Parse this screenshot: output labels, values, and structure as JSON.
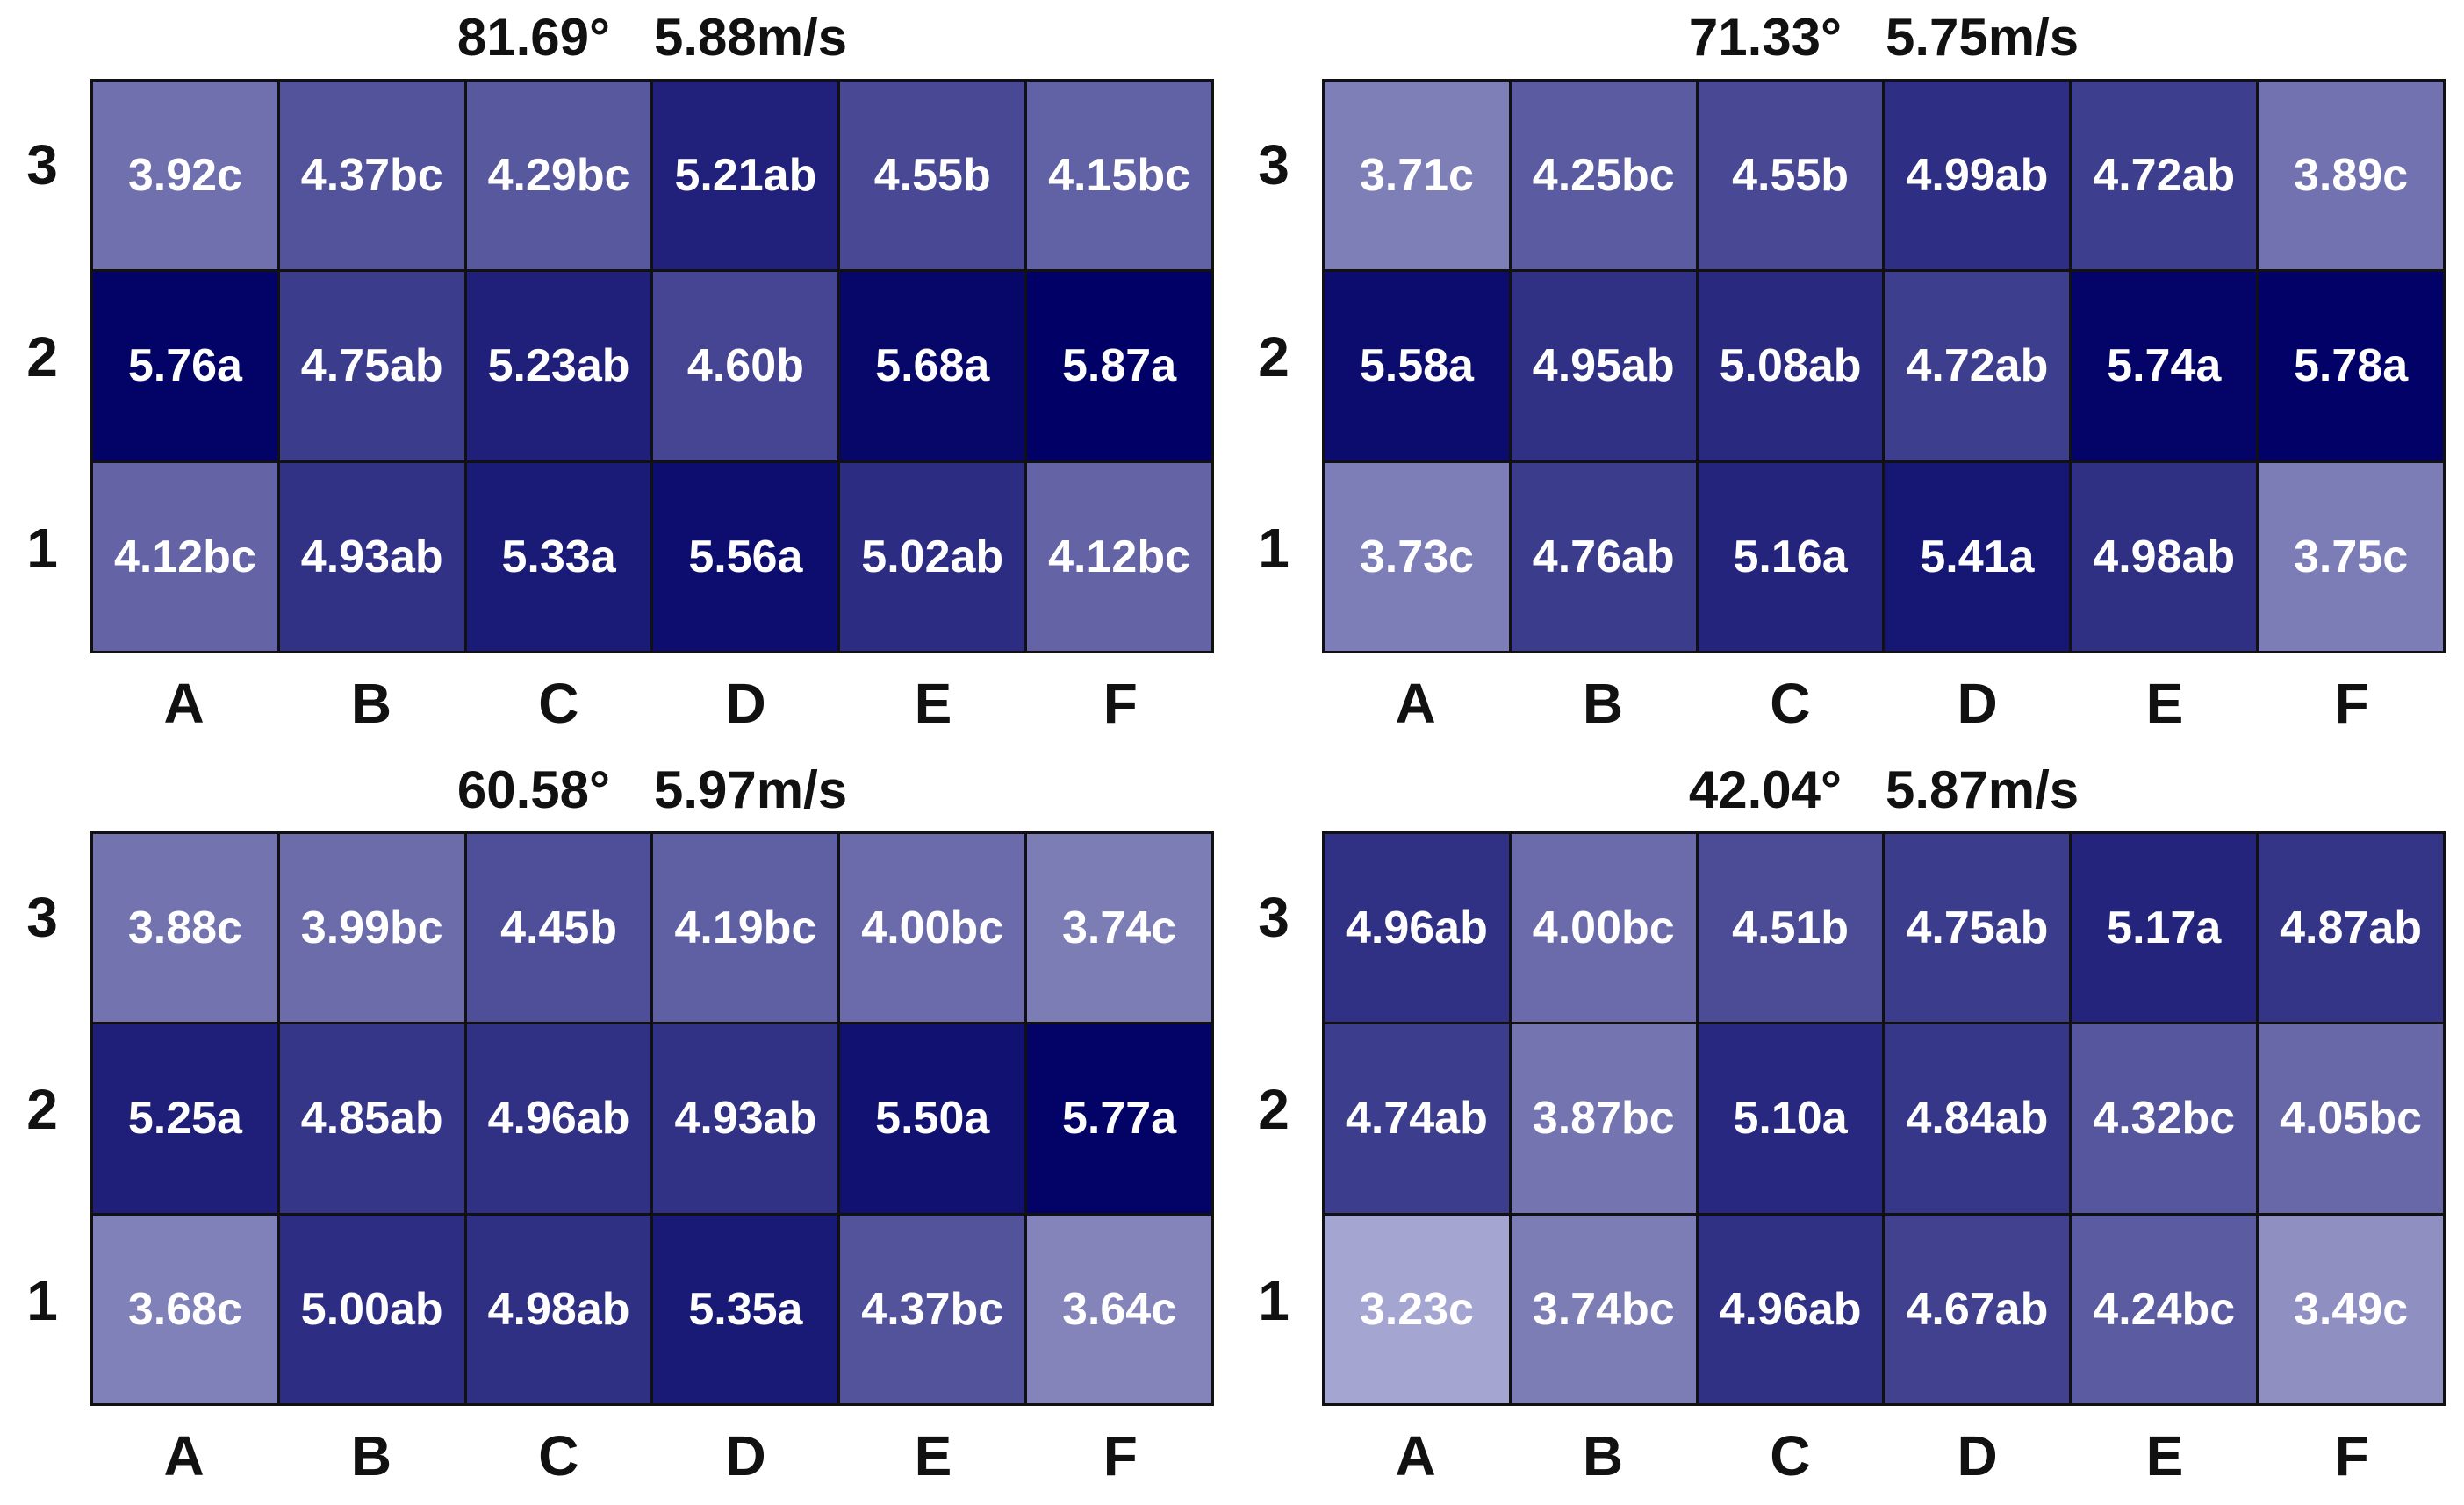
{
  "chart_data": [
    {
      "type": "heatmap",
      "title": "81.69°   5.88m/s",
      "x_categories": [
        "A",
        "B",
        "C",
        "D",
        "E",
        "F"
      ],
      "y_categories": [
        "3",
        "2",
        "1"
      ],
      "values": [
        [
          3.92,
          4.37,
          4.29,
          5.21,
          4.55,
          4.15
        ],
        [
          5.76,
          4.75,
          5.23,
          4.6,
          5.68,
          5.87
        ],
        [
          4.12,
          4.93,
          5.33,
          5.56,
          5.02,
          4.12
        ]
      ],
      "labels": [
        [
          "3.92c",
          "4.37bc",
          "4.29bc",
          "5.21ab",
          "4.55b",
          "4.15bc"
        ],
        [
          "5.76a",
          "4.75ab",
          "5.23ab",
          "4.60b",
          "5.68a",
          "5.87a"
        ],
        [
          "4.12bc",
          "4.93ab",
          "5.33a",
          "5.56a",
          "5.02ab",
          "4.12bc"
        ]
      ]
    },
    {
      "type": "heatmap",
      "title": "71.33°   5.75m/s",
      "x_categories": [
        "A",
        "B",
        "C",
        "D",
        "E",
        "F"
      ],
      "y_categories": [
        "3",
        "2",
        "1"
      ],
      "values": [
        [
          3.71,
          4.25,
          4.55,
          4.99,
          4.72,
          3.89
        ],
        [
          5.58,
          4.95,
          5.08,
          4.72,
          5.74,
          5.78
        ],
        [
          3.73,
          4.76,
          5.16,
          5.41,
          4.98,
          3.75
        ]
      ],
      "labels": [
        [
          "3.71c",
          "4.25bc",
          "4.55b",
          "4.99ab",
          "4.72ab",
          "3.89c"
        ],
        [
          "5.58a",
          "4.95ab",
          "5.08ab",
          "4.72ab",
          "5.74a",
          "5.78a"
        ],
        [
          "3.73c",
          "4.76ab",
          "5.16a",
          "5.41a",
          "4.98ab",
          "3.75c"
        ]
      ]
    },
    {
      "type": "heatmap",
      "title": "60.58°   5.97m/s",
      "x_categories": [
        "A",
        "B",
        "C",
        "D",
        "E",
        "F"
      ],
      "y_categories": [
        "3",
        "2",
        "1"
      ],
      "values": [
        [
          3.88,
          3.99,
          4.45,
          4.19,
          4.0,
          3.74
        ],
        [
          5.25,
          4.85,
          4.96,
          4.93,
          5.5,
          5.77
        ],
        [
          3.68,
          5.0,
          4.98,
          5.35,
          4.37,
          3.64
        ]
      ],
      "labels": [
        [
          "3.88c",
          "3.99bc",
          "4.45b",
          "4.19bc",
          "4.00bc",
          "3.74c"
        ],
        [
          "5.25a",
          "4.85ab",
          "4.96ab",
          "4.93ab",
          "5.50a",
          "5.77a"
        ],
        [
          "3.68c",
          "5.00ab",
          "4.98ab",
          "5.35a",
          "4.37bc",
          "3.64c"
        ]
      ]
    },
    {
      "type": "heatmap",
      "title": "42.04°   5.87m/s",
      "x_categories": [
        "A",
        "B",
        "C",
        "D",
        "E",
        "F"
      ],
      "y_categories": [
        "3",
        "2",
        "1"
      ],
      "values": [
        [
          4.96,
          4.0,
          4.51,
          4.75,
          5.17,
          4.87
        ],
        [
          4.74,
          3.87,
          5.1,
          4.84,
          4.32,
          4.05
        ],
        [
          3.23,
          3.74,
          4.96,
          4.67,
          4.24,
          3.49
        ]
      ],
      "labels": [
        [
          "4.96ab",
          "4.00bc",
          "4.51b",
          "4.75ab",
          "5.17a",
          "4.87ab"
        ],
        [
          "4.74ab",
          "3.87bc",
          "5.10a",
          "4.84ab",
          "4.32bc",
          "4.05bc"
        ],
        [
          "3.23c",
          "3.74bc",
          "4.96ab",
          "4.67ab",
          "4.24bc",
          "3.49c"
        ]
      ]
    }
  ],
  "colors": {
    "low": "#a9a9d3",
    "high": "#000066",
    "border": "#111111"
  }
}
